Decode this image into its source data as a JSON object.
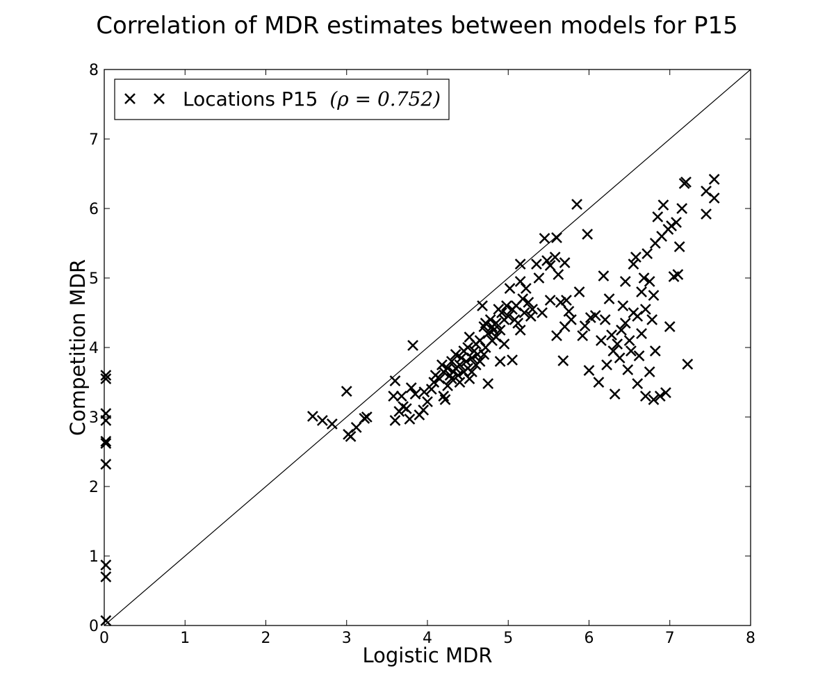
{
  "chart_data": {
    "type": "scatter",
    "title": "Correlation of MDR estimates between models for P15",
    "xlabel": "Logistic MDR",
    "ylabel": "Competition MDR",
    "xlim": [
      0,
      8
    ],
    "ylim": [
      0,
      8
    ],
    "xticks": [
      "0",
      "1",
      "2",
      "3",
      "4",
      "5",
      "6",
      "7",
      "8"
    ],
    "yticks": [
      "0",
      "1",
      "2",
      "3",
      "4",
      "5",
      "6",
      "7",
      "8"
    ],
    "grid": false,
    "legend_position": "top-left",
    "reference_line": {
      "from": [
        0,
        0
      ],
      "to": [
        8,
        8
      ]
    },
    "marker": "x",
    "color": "#000000",
    "series": [
      {
        "name": "Locations P15",
        "legend_text": "Locations P15",
        "legend_math": "(ρ = 0.752)",
        "points": [
          [
            0.02,
            0.07
          ],
          [
            0.02,
            0.7
          ],
          [
            0.02,
            0.87
          ],
          [
            0.02,
            2.32
          ],
          [
            0.02,
            2.62
          ],
          [
            0.02,
            2.65
          ],
          [
            0.02,
            2.95
          ],
          [
            0.02,
            3.05
          ],
          [
            0.02,
            3.55
          ],
          [
            0.02,
            3.6
          ],
          [
            2.58,
            3.01
          ],
          [
            2.7,
            2.95
          ],
          [
            2.82,
            2.9
          ],
          [
            3.0,
            3.37
          ],
          [
            3.02,
            2.75
          ],
          [
            3.05,
            2.72
          ],
          [
            3.12,
            2.85
          ],
          [
            3.22,
            2.98
          ],
          [
            3.25,
            3.0
          ],
          [
            3.58,
            3.3
          ],
          [
            3.6,
            3.52
          ],
          [
            3.6,
            2.95
          ],
          [
            3.65,
            3.08
          ],
          [
            3.68,
            3.3
          ],
          [
            3.7,
            3.15
          ],
          [
            3.74,
            3.12
          ],
          [
            3.78,
            2.97
          ],
          [
            3.8,
            3.42
          ],
          [
            3.82,
            4.03
          ],
          [
            3.85,
            3.33
          ],
          [
            3.9,
            3.03
          ],
          [
            3.95,
            3.1
          ],
          [
            3.96,
            3.36
          ],
          [
            4.0,
            3.22
          ],
          [
            4.05,
            3.4
          ],
          [
            4.08,
            3.5
          ],
          [
            4.1,
            3.6
          ],
          [
            4.15,
            3.55
          ],
          [
            4.18,
            3.75
          ],
          [
            4.2,
            3.65
          ],
          [
            4.2,
            3.3
          ],
          [
            4.22,
            3.25
          ],
          [
            4.25,
            3.45
          ],
          [
            4.25,
            3.7
          ],
          [
            4.28,
            3.6
          ],
          [
            4.3,
            3.55
          ],
          [
            4.3,
            3.8
          ],
          [
            4.32,
            3.65
          ],
          [
            4.35,
            3.7
          ],
          [
            4.35,
            3.9
          ],
          [
            4.38,
            3.6
          ],
          [
            4.4,
            3.75
          ],
          [
            4.4,
            3.5
          ],
          [
            4.42,
            3.85
          ],
          [
            4.45,
            3.65
          ],
          [
            4.45,
            3.95
          ],
          [
            4.48,
            3.8
          ],
          [
            4.5,
            3.7
          ],
          [
            4.5,
            4.0
          ],
          [
            4.52,
            3.55
          ],
          [
            4.52,
            4.15
          ],
          [
            4.55,
            3.85
          ],
          [
            4.55,
            3.65
          ],
          [
            4.58,
            3.95
          ],
          [
            4.6,
            3.75
          ],
          [
            4.6,
            4.05
          ],
          [
            4.62,
            3.9
          ],
          [
            4.65,
            4.1
          ],
          [
            4.65,
            3.8
          ],
          [
            4.68,
            4.6
          ],
          [
            4.7,
            4.3
          ],
          [
            4.7,
            3.9
          ],
          [
            4.72,
            4.0
          ],
          [
            4.72,
            4.35
          ],
          [
            4.75,
            4.2
          ],
          [
            4.75,
            3.48
          ],
          [
            4.78,
            4.4
          ],
          [
            4.8,
            4.3
          ],
          [
            4.8,
            4.1
          ],
          [
            4.82,
            4.25
          ],
          [
            4.85,
            4.15
          ],
          [
            4.85,
            4.35
          ],
          [
            4.88,
            4.55
          ],
          [
            4.9,
            4.25
          ],
          [
            4.9,
            3.8
          ],
          [
            4.92,
            4.5
          ],
          [
            4.95,
            4.4
          ],
          [
            4.95,
            4.05
          ],
          [
            4.98,
            4.6
          ],
          [
            5.0,
            4.45
          ],
          [
            5.02,
            4.85
          ],
          [
            5.05,
            4.55
          ],
          [
            5.05,
            3.82
          ],
          [
            5.08,
            4.4
          ],
          [
            5.1,
            4.6
          ],
          [
            5.12,
            4.35
          ],
          [
            5.15,
            4.25
          ],
          [
            5.15,
            4.95
          ],
          [
            5.15,
            5.2
          ],
          [
            5.18,
            4.7
          ],
          [
            5.2,
            4.5
          ],
          [
            5.22,
            4.85
          ],
          [
            5.25,
            4.65
          ],
          [
            5.28,
            4.45
          ],
          [
            5.3,
            4.55
          ],
          [
            5.35,
            5.2
          ],
          [
            5.38,
            5.0
          ],
          [
            5.42,
            4.5
          ],
          [
            5.45,
            5.57
          ],
          [
            5.48,
            5.25
          ],
          [
            5.52,
            5.18
          ],
          [
            5.52,
            4.68
          ],
          [
            5.58,
            5.3
          ],
          [
            5.6,
            5.58
          ],
          [
            5.6,
            4.17
          ],
          [
            5.62,
            5.05
          ],
          [
            5.65,
            4.65
          ],
          [
            5.68,
            3.81
          ],
          [
            5.7,
            4.3
          ],
          [
            5.7,
            5.22
          ],
          [
            5.72,
            4.68
          ],
          [
            5.75,
            4.52
          ],
          [
            5.78,
            4.4
          ],
          [
            5.85,
            6.06
          ],
          [
            5.88,
            4.8
          ],
          [
            5.92,
            4.17
          ],
          [
            5.95,
            4.31
          ],
          [
            5.98,
            5.63
          ],
          [
            6.0,
            3.67
          ],
          [
            6.02,
            4.43
          ],
          [
            6.08,
            4.46
          ],
          [
            6.12,
            3.5
          ],
          [
            6.15,
            4.1
          ],
          [
            6.18,
            5.03
          ],
          [
            6.2,
            4.4
          ],
          [
            6.22,
            3.75
          ],
          [
            6.25,
            4.7
          ],
          [
            6.28,
            4.18
          ],
          [
            6.3,
            3.95
          ],
          [
            6.32,
            3.33
          ],
          [
            6.35,
            4.05
          ],
          [
            6.38,
            3.85
          ],
          [
            6.4,
            4.25
          ],
          [
            6.42,
            4.6
          ],
          [
            6.45,
            4.95
          ],
          [
            6.45,
            4.35
          ],
          [
            6.48,
            3.68
          ],
          [
            6.5,
            4.1
          ],
          [
            6.52,
            3.95
          ],
          [
            6.55,
            4.5
          ],
          [
            6.55,
            5.2
          ],
          [
            6.58,
            5.3
          ],
          [
            6.6,
            4.45
          ],
          [
            6.6,
            3.48
          ],
          [
            6.62,
            3.88
          ],
          [
            6.65,
            4.8
          ],
          [
            6.65,
            4.2
          ],
          [
            6.68,
            5.0
          ],
          [
            6.7,
            3.3
          ],
          [
            6.7,
            4.55
          ],
          [
            6.72,
            5.35
          ],
          [
            6.75,
            3.65
          ],
          [
            6.75,
            4.95
          ],
          [
            6.78,
            4.4
          ],
          [
            6.8,
            3.25
          ],
          [
            6.8,
            4.75
          ],
          [
            6.82,
            5.5
          ],
          [
            6.82,
            3.95
          ],
          [
            6.85,
            5.88
          ],
          [
            6.88,
            3.3
          ],
          [
            6.9,
            5.6
          ],
          [
            6.92,
            6.05
          ],
          [
            6.95,
            3.35
          ],
          [
            6.98,
            5.7
          ],
          [
            7.0,
            4.3
          ],
          [
            7.02,
            5.75
          ],
          [
            7.05,
            5.02
          ],
          [
            7.08,
            5.8
          ],
          [
            7.1,
            5.05
          ],
          [
            7.12,
            5.45
          ],
          [
            7.15,
            6.0
          ],
          [
            7.18,
            6.36
          ],
          [
            7.2,
            6.38
          ],
          [
            7.22,
            3.76
          ],
          [
            7.45,
            6.25
          ],
          [
            7.45,
            5.92
          ],
          [
            7.55,
            6.42
          ],
          [
            7.55,
            6.15
          ]
        ]
      }
    ]
  }
}
